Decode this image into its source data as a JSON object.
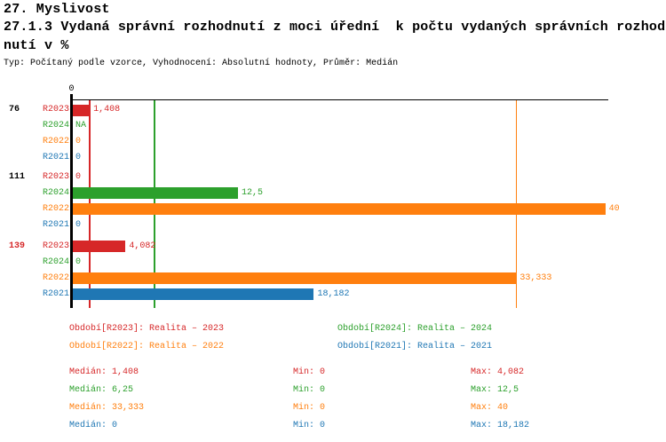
{
  "header": {
    "chapter": "27. Myslivost",
    "indicator_line1": "27.1.3 Vydaná správní rozhodnutí z moci úřední  k počtu vydaných správních rozhod",
    "indicator_line2": "nutí v %",
    "meta": "Typ: Počítaný podle vzorce, Vyhodnocení: Absolutní hodnoty, Průměr: Medián"
  },
  "colors": {
    "R2023": "#d62728",
    "R2024": "#2ca02c",
    "R2022": "#ff7f0e",
    "R2021": "#1f77b4",
    "axis": "#000000"
  },
  "chart_data": {
    "type": "bar",
    "orientation": "horizontal",
    "value_axis": {
      "zero_label": "0",
      "min": 0,
      "max": 40,
      "grid": false
    },
    "series_order": [
      "R2023",
      "R2024",
      "R2022",
      "R2021"
    ],
    "groups": [
      {
        "label": "76",
        "label_color": "#000000",
        "rows": [
          {
            "series": "R2023",
            "value": 1.408,
            "value_label": "1,408"
          },
          {
            "series": "R2024",
            "value": null,
            "value_label": "NA"
          },
          {
            "series": "R2022",
            "value": 0,
            "value_label": "0"
          },
          {
            "series": "R2021",
            "value": 0,
            "value_label": "0"
          }
        ]
      },
      {
        "label": "111",
        "label_color": "#000000",
        "rows": [
          {
            "series": "R2023",
            "value": 0,
            "value_label": "0"
          },
          {
            "series": "R2024",
            "value": 12.5,
            "value_label": "12,5"
          },
          {
            "series": "R2022",
            "value": 40,
            "value_label": "40"
          },
          {
            "series": "R2021",
            "value": 0,
            "value_label": "0"
          }
        ]
      },
      {
        "label": "139",
        "label_color": "#d62728",
        "rows": [
          {
            "series": "R2023",
            "value": 4.082,
            "value_label": "4,082"
          },
          {
            "series": "R2024",
            "value": 0,
            "value_label": "0"
          },
          {
            "series": "R2022",
            "value": 33.333,
            "value_label": "33,333"
          },
          {
            "series": "R2021",
            "value": 18.182,
            "value_label": "18,182"
          }
        ]
      }
    ],
    "median_lines": [
      {
        "series": "R2023",
        "value": 1.408
      },
      {
        "series": "R2024",
        "value": 6.25
      },
      {
        "series": "R2022",
        "value": 33.333
      },
      {
        "series": "R2021",
        "value": 0
      }
    ]
  },
  "legend": [
    {
      "series": "R2023",
      "text": "Období[R2023]: Realita – 2023",
      "col": 0,
      "row": 0
    },
    {
      "series": "R2024",
      "text": "Období[R2024]: Realita – 2024",
      "col": 1,
      "row": 0
    },
    {
      "series": "R2022",
      "text": "Období[R2022]: Realita – 2022",
      "col": 0,
      "row": 1
    },
    {
      "series": "R2021",
      "text": "Období[R2021]: Realita – 2021",
      "col": 1,
      "row": 1
    }
  ],
  "stats": [
    {
      "series": "R2023",
      "median": "Medián: 1,408",
      "min": "Min: 0",
      "max": "Max: 4,082"
    },
    {
      "series": "R2024",
      "median": "Medián: 6,25",
      "min": "Min: 0",
      "max": "Max: 12,5"
    },
    {
      "series": "R2022",
      "median": "Medián: 33,333",
      "min": "Min: 0",
      "max": "Max: 40"
    },
    {
      "series": "R2021",
      "median": "Medián: 0",
      "min": "Min: 0",
      "max": "Max: 18,182"
    }
  ]
}
